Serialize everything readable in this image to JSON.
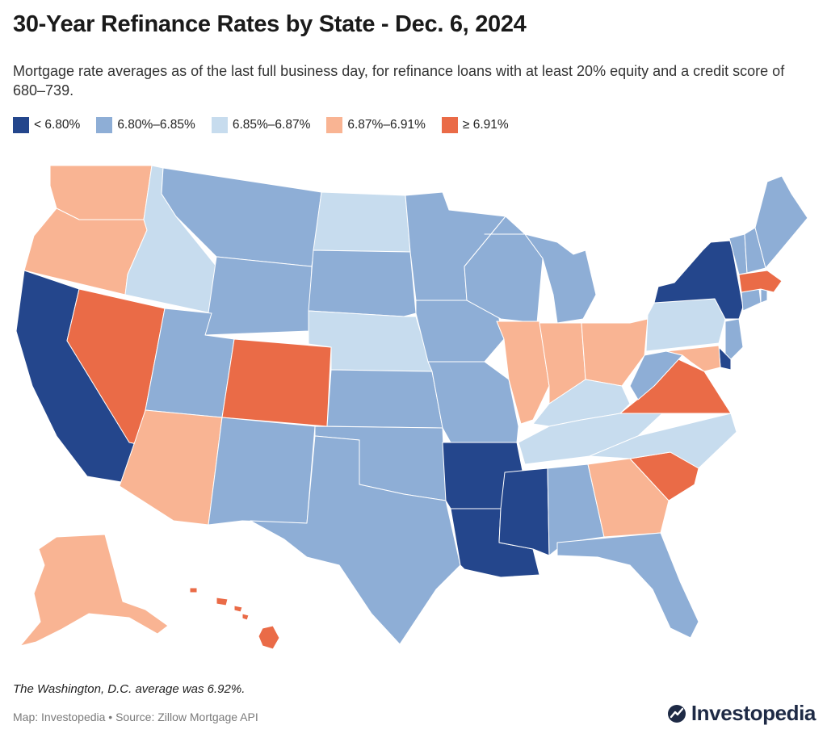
{
  "title": "30-Year Refinance Rates by State - Dec. 6, 2024",
  "subtitle": "Mortgage rate averages as of the last full business day, for refinance loans with at least 20% equity and a credit score of 680–739.",
  "legend": [
    {
      "label": "< 6.80%",
      "color": "#24468c"
    },
    {
      "label": "6.80%–6.85%",
      "color": "#8eaed6"
    },
    {
      "label": "6.85%–6.87%",
      "color": "#c7dcee"
    },
    {
      "label": "6.87%–6.91%",
      "color": "#f9b493"
    },
    {
      "label": "≥ 6.91%",
      "color": "#ea6b47"
    }
  ],
  "map": {
    "state_categories": {
      "WA": 3,
      "OR": 3,
      "CA": 0,
      "NV": 4,
      "ID": 2,
      "MT": 1,
      "WY": 1,
      "UT": 1,
      "AZ": 3,
      "CO": 4,
      "NM": 1,
      "ND": 2,
      "SD": 1,
      "NE": 2,
      "KS": 1,
      "OK": 1,
      "TX": 1,
      "MN": 1,
      "IA": 1,
      "MO": 1,
      "AR": 0,
      "LA": 0,
      "WI": 1,
      "IL": 3,
      "MI": 1,
      "IN": 3,
      "OH": 3,
      "KY": 2,
      "TN": 2,
      "MS": 0,
      "AL": 1,
      "GA": 3,
      "FL": 1,
      "SC": 4,
      "NC": 2,
      "VA": 4,
      "WV": 1,
      "PA": 2,
      "NY": 0,
      "ME": 1,
      "VT": 1,
      "NH": 1,
      "MA": 4,
      "CT": 1,
      "RI": 1,
      "NJ": 1,
      "DE": 0,
      "MD": 3,
      "AK": 3,
      "HI": 4
    }
  },
  "note": "The Washington, D.C. average was 6.92%.",
  "source": "Map: Investopedia • Source: Zillow Mortgage API",
  "brand": "Investopedia"
}
